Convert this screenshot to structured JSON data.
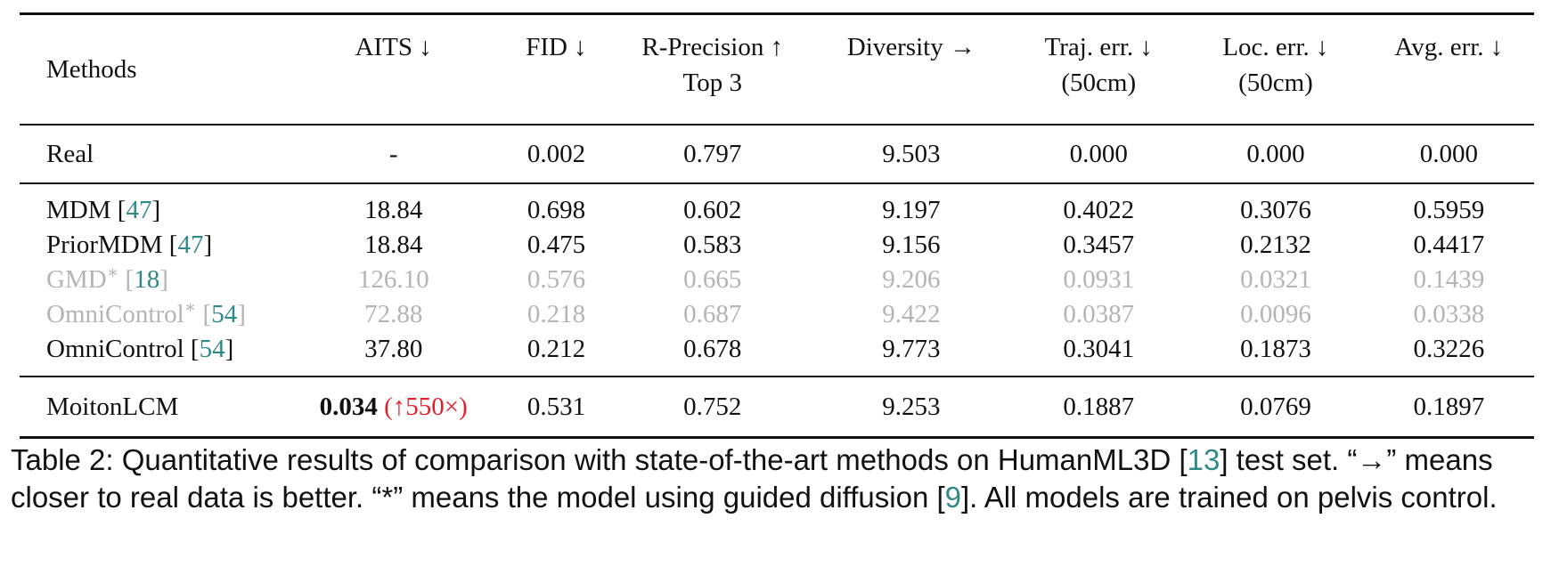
{
  "table": {
    "headers": {
      "methods": "Methods",
      "aits": "AITS ↓",
      "fid": "FID ↓",
      "rprec_line1": "R-Precision ↑",
      "rprec_line2": "Top 3",
      "diversity": "Diversity →",
      "traj_line1": "Traj. err. ↓",
      "traj_line2": "(50cm)",
      "loc_line1": "Loc. err. ↓",
      "loc_line2": "(50cm)",
      "avg": "Avg. err. ↓"
    },
    "real": {
      "name": "Real",
      "aits": "-",
      "fid": "0.002",
      "rprec": "0.797",
      "diversity": "9.503",
      "traj": "0.000",
      "loc": "0.000",
      "avg": "0.000"
    },
    "rows": [
      {
        "name": "MDM",
        "cite": "47",
        "star": "",
        "aits": "18.84",
        "fid": "0.698",
        "rprec": "0.602",
        "diversity": "9.197",
        "traj": "0.4022",
        "loc": "0.3076",
        "avg": "0.5959"
      },
      {
        "name": "PriorMDM",
        "cite": "47",
        "star": "",
        "aits": "18.84",
        "fid": "0.475",
        "rprec": "0.583",
        "diversity": "9.156",
        "traj": "0.3457",
        "loc": "0.2132",
        "avg": "0.4417"
      },
      {
        "name": "GMD",
        "cite": "18",
        "star": "∗",
        "aits": "126.10",
        "fid": "0.576",
        "rprec": "0.665",
        "diversity": "9.206",
        "traj": "0.0931",
        "loc": "0.0321",
        "avg": "0.1439"
      },
      {
        "name": "OmniControl",
        "cite": "54",
        "star": "∗",
        "aits": "72.88",
        "fid": "0.218",
        "rprec": "0.687",
        "diversity": "9.422",
        "traj": "0.0387",
        "loc": "0.0096",
        "avg": "0.0338"
      },
      {
        "name": "OmniControl",
        "cite": "54",
        "star": "",
        "aits": "37.80",
        "fid": "0.212",
        "rprec": "0.678",
        "diversity": "9.773",
        "traj": "0.3041",
        "loc": "0.1873",
        "avg": "0.3226"
      }
    ],
    "ours": {
      "name": "MoitonLCM",
      "aits": "0.034",
      "speedup": "(↑550×)",
      "fid": "0.531",
      "rprec": "0.752",
      "diversity": "9.253",
      "traj": "0.1887",
      "loc": "0.0769",
      "avg": "0.1897"
    }
  },
  "caption": {
    "part1": "Table 2: Quantitative results of comparison with state-of-the-art methods on HumanML3D [",
    "cite1": "13",
    "part2": "] test set. “→” means closer to real data is better. “*” means the model using guided diffusion [",
    "cite2": "9",
    "part3": "]. All models are trained on pelvis control."
  },
  "colors": {
    "citation": "#2f8a87",
    "muted_row": "#b4b4b4",
    "speedup": "#e0202a"
  }
}
